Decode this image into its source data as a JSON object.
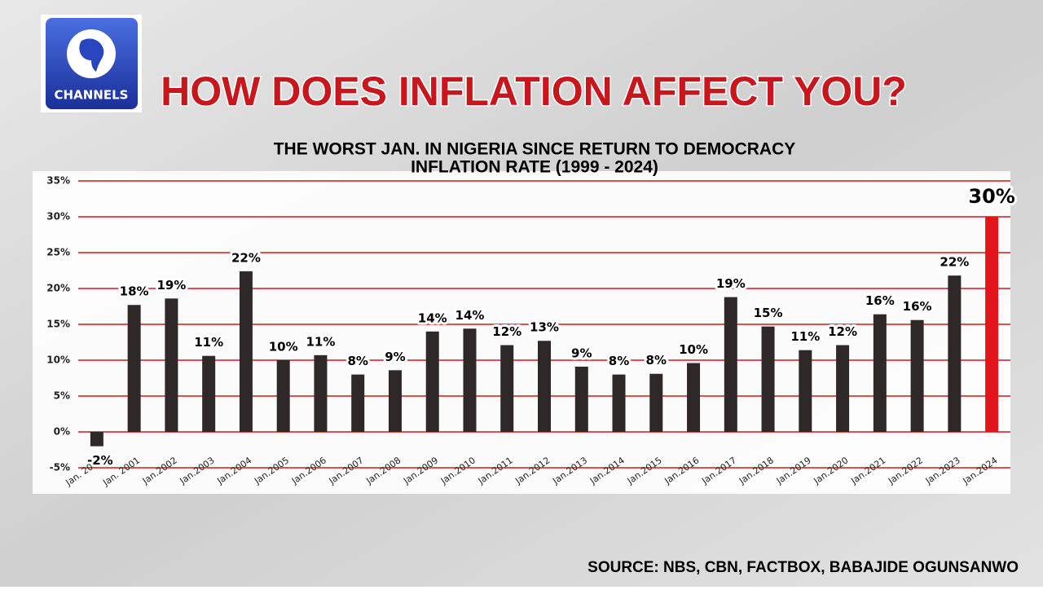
{
  "brand": "CHANNELS",
  "chart_data": {
    "type": "bar",
    "title": "HOW DOES INFLATION AFFECT YOU?",
    "subtitle": [
      "THE WORST JAN. IN NIGERIA SINCE RETURN TO DEMOCRACY",
      "INFLATION RATE (1999 - 2024)"
    ],
    "source": "SOURCE: NBS, CBN, FACTBOX, BABAJIDE OGUNSANWO",
    "categories": [
      "Jan. 2000",
      "Jan. 2001",
      "Jan.2002",
      "Jan.2003",
      "Jan.2004",
      "Jan.2005",
      "Jan.2006",
      "Jan.2007",
      "Jan.2008",
      "Jan.2009",
      "Jan.2010",
      "Jan.2011",
      "Jan.2012",
      "Jan.2013",
      "Jan.2014",
      "Jan.2015",
      "Jan.2016",
      "Jan.2017",
      "Jan.2018",
      "Jan.2019",
      "Jan.2020",
      "Jan.2021",
      "Jan.2022",
      "Jan.2023",
      "Jan.2024"
    ],
    "values": [
      -2,
      17.7,
      18.6,
      10.6,
      22.4,
      10.0,
      10.7,
      8.0,
      8.6,
      14.0,
      14.4,
      12.1,
      12.7,
      9.1,
      8.0,
      8.1,
      9.6,
      18.8,
      14.7,
      11.4,
      12.1,
      16.4,
      15.6,
      21.8,
      30.0
    ],
    "value_labels": [
      "-2%",
      "18%",
      "19%",
      "11%",
      "22%",
      "10%",
      "11%",
      "8%",
      "9%",
      "14%",
      "14%",
      "12%",
      "13%",
      "9%",
      "8%",
      "8%",
      "10%",
      "19%",
      "15%",
      "11%",
      "12%",
      "16%",
      "16%",
      "22%",
      "30%"
    ],
    "colors": [
      "#2e2828",
      "#2e2828",
      "#2e2828",
      "#2e2828",
      "#2e2828",
      "#2e2828",
      "#2e2828",
      "#2e2828",
      "#2e2828",
      "#2e2828",
      "#2e2828",
      "#2e2828",
      "#2e2828",
      "#2e2828",
      "#2e2828",
      "#2e2828",
      "#2e2828",
      "#2e2828",
      "#2e2828",
      "#2e2828",
      "#2e2828",
      "#2e2828",
      "#2e2828",
      "#2e2828",
      "#e3141a"
    ],
    "ylim": [
      -5,
      35
    ],
    "yticks": [
      {
        "value": -5,
        "label": "-5%"
      },
      {
        "value": 0,
        "label": "0%"
      },
      {
        "value": 5,
        "label": "5%"
      },
      {
        "value": 10,
        "label": "10%"
      },
      {
        "value": 15,
        "label": "15%"
      },
      {
        "value": 20,
        "label": "20%"
      },
      {
        "value": 25,
        "label": "25%"
      },
      {
        "value": 30,
        "label": "30%"
      },
      {
        "value": 35,
        "label": "35%"
      }
    ],
    "grid": true,
    "grid_color": "#e05050"
  }
}
